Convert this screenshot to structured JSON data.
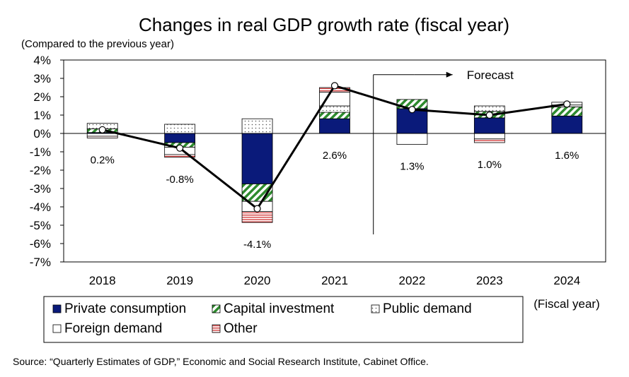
{
  "chart_data": {
    "type": "bar",
    "title": "Changes in real GDP growth rate (fiscal year)",
    "ylabel": "(Compared to the previous year)",
    "xlabel": "(Fiscal year)",
    "categories": [
      "2018",
      "2019",
      "2020",
      "2021",
      "2022",
      "2023",
      "2024"
    ],
    "ylim": [
      -7,
      4
    ],
    "yticks": [
      4,
      3,
      2,
      1,
      0,
      -1,
      -2,
      -3,
      -4,
      -5,
      -6,
      -7
    ],
    "ytick_labels": [
      "4%",
      "3%",
      "2%",
      "1%",
      "0%",
      "-1%",
      "-2%",
      "-3%",
      "-4%",
      "-5%",
      "-6%",
      "-7%"
    ],
    "grid": false,
    "stacked": true,
    "series": [
      {
        "name": "Private consumption",
        "color": "#0a1a7a",
        "pattern": "solid",
        "values": [
          0.05,
          -0.5,
          -2.75,
          0.8,
          1.35,
          0.85,
          0.95
        ]
      },
      {
        "name": "Capital investment",
        "color": "#2e8b2e",
        "pattern": "diagonal-stripes",
        "values": [
          0.2,
          -0.25,
          -0.95,
          0.35,
          0.5,
          0.35,
          0.5
        ]
      },
      {
        "name": "Public demand",
        "color": "#555555",
        "pattern": "dots",
        "values": [
          0.3,
          0.5,
          0.8,
          0.35,
          0.0,
          0.3,
          0.1
        ]
      },
      {
        "name": "Foreign demand",
        "color": "#000000",
        "pattern": "white",
        "values": [
          -0.15,
          -0.4,
          -0.55,
          0.75,
          -0.6,
          -0.3,
          0.15
        ]
      },
      {
        "name": "Other",
        "color": "#d03030",
        "pattern": "horizontal-stripes",
        "values": [
          -0.1,
          -0.15,
          -0.6,
          0.25,
          0.0,
          -0.2,
          0.0
        ]
      }
    ],
    "line": {
      "name": "Real GDP growth rate",
      "values": [
        0.2,
        -0.8,
        -4.1,
        2.6,
        1.3,
        1.0,
        1.6
      ]
    },
    "value_labels": [
      "0.2%",
      "-0.8%",
      "-4.1%",
      "2.6%",
      "1.3%",
      "1.0%",
      "1.6%"
    ],
    "forecast_label": "Forecast",
    "forecast_start_index": 4,
    "legend_position": "bottom",
    "source": "Source: “Quarterly Estimates of GDP,” Economic and Social Research Institute, Cabinet Office."
  }
}
